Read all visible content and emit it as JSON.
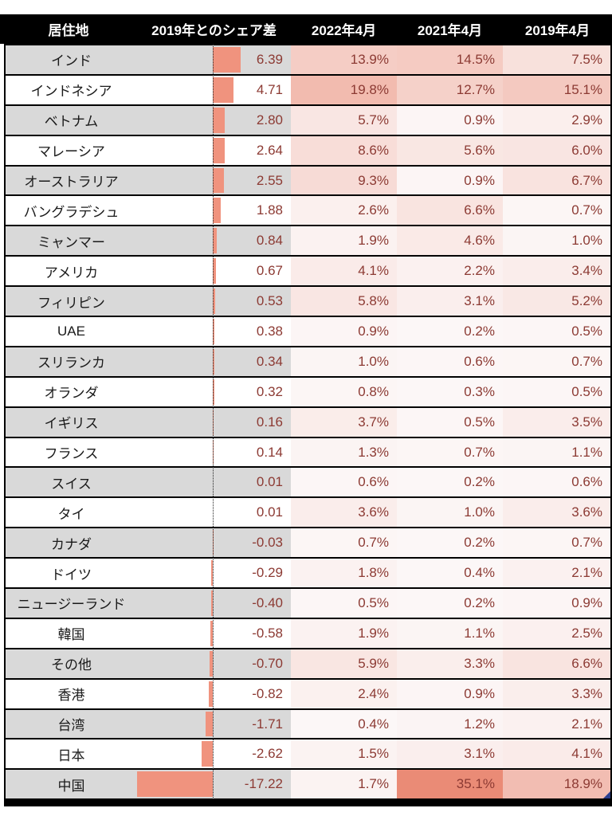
{
  "chart_data": {
    "type": "table",
    "title": "",
    "columns": [
      "居住地",
      "2019年とのシェア差",
      "2022年4月",
      "2021年4月",
      "2019年4月"
    ],
    "legend": "none",
    "bar_axis": "zero line dotted, positive bars right, negative bars left",
    "rows": [
      {
        "name": "インド",
        "diff": 6.39,
        "apr2022": 13.9,
        "apr2021": 14.5,
        "apr2019": 7.5
      },
      {
        "name": "インドネシア",
        "diff": 4.71,
        "apr2022": 19.8,
        "apr2021": 12.7,
        "apr2019": 15.1
      },
      {
        "name": "ベトナム",
        "diff": 2.8,
        "apr2022": 5.7,
        "apr2021": 0.9,
        "apr2019": 2.9
      },
      {
        "name": "マレーシア",
        "diff": 2.64,
        "apr2022": 8.6,
        "apr2021": 5.6,
        "apr2019": 6.0
      },
      {
        "name": "オーストラリア",
        "diff": 2.55,
        "apr2022": 9.3,
        "apr2021": 0.9,
        "apr2019": 6.7
      },
      {
        "name": "バングラデシュ",
        "diff": 1.88,
        "apr2022": 2.6,
        "apr2021": 6.6,
        "apr2019": 0.7
      },
      {
        "name": "ミャンマー",
        "diff": 0.84,
        "apr2022": 1.9,
        "apr2021": 4.6,
        "apr2019": 1.0
      },
      {
        "name": "アメリカ",
        "diff": 0.67,
        "apr2022": 4.1,
        "apr2021": 2.2,
        "apr2019": 3.4
      },
      {
        "name": "フィリピン",
        "diff": 0.53,
        "apr2022": 5.8,
        "apr2021": 3.1,
        "apr2019": 5.2
      },
      {
        "name": "UAE",
        "diff": 0.38,
        "apr2022": 0.9,
        "apr2021": 0.2,
        "apr2019": 0.5
      },
      {
        "name": "スリランカ",
        "diff": 0.34,
        "apr2022": 1.0,
        "apr2021": 0.6,
        "apr2019": 0.7
      },
      {
        "name": "オランダ",
        "diff": 0.32,
        "apr2022": 0.8,
        "apr2021": 0.3,
        "apr2019": 0.5
      },
      {
        "name": "イギリス",
        "diff": 0.16,
        "apr2022": 3.7,
        "apr2021": 0.5,
        "apr2019": 3.5
      },
      {
        "name": "フランス",
        "diff": 0.14,
        "apr2022": 1.3,
        "apr2021": 0.7,
        "apr2019": 1.1
      },
      {
        "name": "スイス",
        "diff": 0.01,
        "apr2022": 0.6,
        "apr2021": 0.2,
        "apr2019": 0.6
      },
      {
        "name": "タイ",
        "diff": 0.01,
        "apr2022": 3.6,
        "apr2021": 1.0,
        "apr2019": 3.6
      },
      {
        "name": "カナダ",
        "diff": -0.03,
        "apr2022": 0.7,
        "apr2021": 0.2,
        "apr2019": 0.7
      },
      {
        "name": "ドイツ",
        "diff": -0.29,
        "apr2022": 1.8,
        "apr2021": 0.4,
        "apr2019": 2.1
      },
      {
        "name": "ニュージーランド",
        "diff": -0.4,
        "apr2022": 0.5,
        "apr2021": 0.2,
        "apr2019": 0.9
      },
      {
        "name": "韓国",
        "diff": -0.58,
        "apr2022": 1.9,
        "apr2021": 1.1,
        "apr2019": 2.5
      },
      {
        "name": "その他",
        "diff": -0.7,
        "apr2022": 5.9,
        "apr2021": 3.3,
        "apr2019": 6.6
      },
      {
        "name": "香港",
        "diff": -0.82,
        "apr2022": 2.4,
        "apr2021": 0.9,
        "apr2019": 3.3
      },
      {
        "name": "台湾",
        "diff": -1.71,
        "apr2022": 0.4,
        "apr2021": 1.2,
        "apr2019": 2.1
      },
      {
        "name": "日本",
        "diff": -2.62,
        "apr2022": 1.5,
        "apr2021": 3.1,
        "apr2019": 4.1
      },
      {
        "name": "中国",
        "diff": -17.22,
        "apr2022": 1.7,
        "apr2021": 35.1,
        "apr2019": 18.9
      }
    ]
  },
  "colors": {
    "header_bg": "#000000",
    "header_text": "#ffffff",
    "band_gray": "#d9d9d9",
    "band_white": "#ffffff",
    "bar_fill": "#f0937e",
    "value_text": "#8c3a33",
    "scale_min_color": "#fcf8f8",
    "scale_max_color": "#ea8b76",
    "scale_min": 0,
    "scale_max": 35.1,
    "border": "#000000",
    "fill_handle": "#2b3f8f"
  }
}
